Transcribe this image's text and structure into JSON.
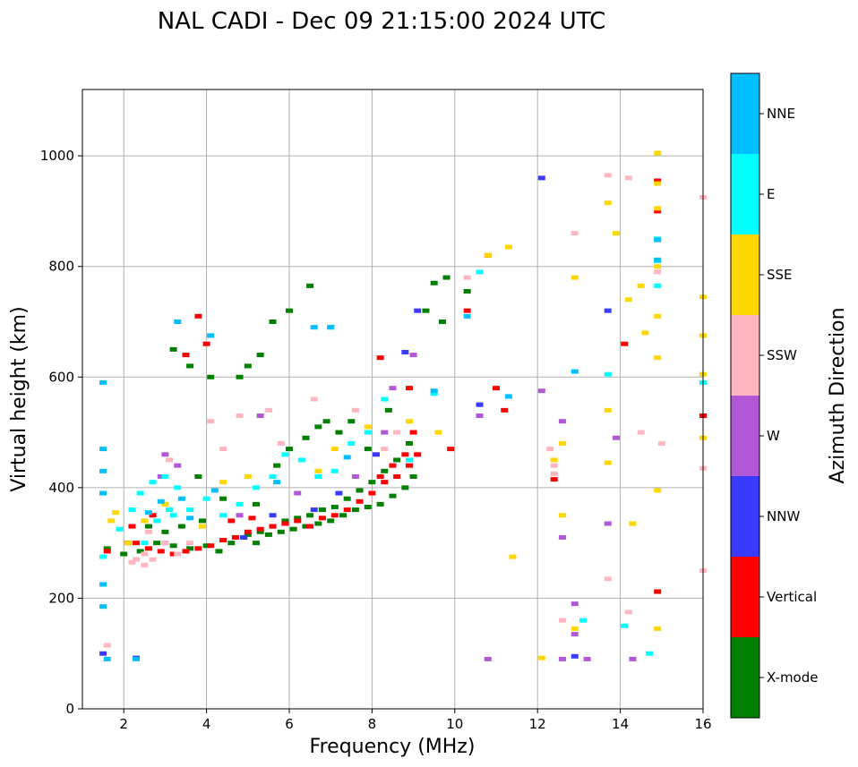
{
  "chart_data": {
    "type": "scatter",
    "title": "NAL CADI - Dec 09 21:15:00 2024 UTC",
    "xlabel": "Frequency (MHz)",
    "ylabel": "Virtual height (km)",
    "xlim": [
      1,
      16
    ],
    "ylim": [
      0,
      1120
    ],
    "xticks": [
      2,
      4,
      6,
      8,
      10,
      12,
      14,
      16
    ],
    "yticks": [
      0,
      200,
      400,
      600,
      800,
      1000
    ],
    "grid": true,
    "colorbar": {
      "label": "Azimuth Direction",
      "categories": [
        {
          "name": "X-mode",
          "color": "#008000"
        },
        {
          "name": "Vertical",
          "color": "#ff0000"
        },
        {
          "name": "NNW",
          "color": "#3a3aff"
        },
        {
          "name": "W",
          "color": "#b257d6"
        },
        {
          "name": "SSW",
          "color": "#ffb6c1"
        },
        {
          "name": "SSE",
          "color": "#ffd700"
        },
        {
          "name": "E",
          "color": "#00ffff"
        },
        {
          "name": "NNE",
          "color": "#00bfff"
        }
      ]
    },
    "series": [
      {
        "name": "X-mode",
        "points": [
          [
            1.6,
            290
          ],
          [
            2.0,
            280
          ],
          [
            2.4,
            285
          ],
          [
            2.8,
            300
          ],
          [
            3.2,
            295
          ],
          [
            3.6,
            290
          ],
          [
            4.0,
            295
          ],
          [
            4.3,
            285
          ],
          [
            4.6,
            300
          ],
          [
            4.9,
            310
          ],
          [
            5.2,
            300
          ],
          [
            5.5,
            315
          ],
          [
            5.8,
            320
          ],
          [
            6.1,
            325
          ],
          [
            6.4,
            330
          ],
          [
            6.7,
            335
          ],
          [
            7.0,
            340
          ],
          [
            7.3,
            350
          ],
          [
            7.6,
            360
          ],
          [
            7.9,
            365
          ],
          [
            8.2,
            370
          ],
          [
            8.5,
            385
          ],
          [
            8.8,
            400
          ],
          [
            9.0,
            420
          ],
          [
            8.9,
            480
          ],
          [
            8.6,
            450
          ],
          [
            8.3,
            430
          ],
          [
            8.0,
            410
          ],
          [
            7.7,
            395
          ],
          [
            7.4,
            380
          ],
          [
            7.1,
            365
          ],
          [
            6.8,
            360
          ],
          [
            6.5,
            350
          ],
          [
            6.2,
            345
          ],
          [
            5.9,
            340
          ],
          [
            5.6,
            330
          ],
          [
            5.3,
            320
          ],
          [
            5.0,
            315
          ],
          [
            6.7,
            510
          ],
          [
            6.4,
            490
          ],
          [
            6.9,
            520
          ],
          [
            7.2,
            500
          ],
          [
            7.5,
            520
          ],
          [
            7.9,
            470
          ],
          [
            8.4,
            540
          ],
          [
            6.5,
            765
          ],
          [
            5.3,
            640
          ],
          [
            5.0,
            620
          ],
          [
            4.8,
            600
          ],
          [
            5.6,
            700
          ],
          [
            6.0,
            720
          ],
          [
            3.6,
            620
          ],
          [
            3.2,
            650
          ],
          [
            4.1,
            600
          ],
          [
            9.5,
            770
          ],
          [
            9.8,
            780
          ],
          [
            10.3,
            755
          ],
          [
            9.7,
            700
          ],
          [
            9.3,
            720
          ],
          [
            3.8,
            420
          ],
          [
            4.4,
            380
          ],
          [
            5.2,
            370
          ],
          [
            2.6,
            330
          ],
          [
            3.0,
            320
          ],
          [
            3.4,
            330
          ],
          [
            3.9,
            340
          ],
          [
            6.0,
            470
          ],
          [
            5.7,
            440
          ]
        ]
      },
      {
        "name": "Vertical",
        "points": [
          [
            1.6,
            285
          ],
          [
            2.1,
            300
          ],
          [
            2.3,
            300
          ],
          [
            2.6,
            290
          ],
          [
            2.9,
            285
          ],
          [
            3.2,
            280
          ],
          [
            3.5,
            285
          ],
          [
            3.8,
            290
          ],
          [
            4.1,
            295
          ],
          [
            4.4,
            305
          ],
          [
            4.7,
            310
          ],
          [
            5.0,
            320
          ],
          [
            5.3,
            325
          ],
          [
            5.6,
            330
          ],
          [
            5.9,
            335
          ],
          [
            6.2,
            340
          ],
          [
            6.5,
            330
          ],
          [
            6.8,
            345
          ],
          [
            7.1,
            350
          ],
          [
            7.4,
            360
          ],
          [
            7.7,
            375
          ],
          [
            8.0,
            390
          ],
          [
            8.3,
            410
          ],
          [
            8.6,
            420
          ],
          [
            8.9,
            440
          ],
          [
            9.1,
            460
          ],
          [
            8.8,
            460
          ],
          [
            8.5,
            440
          ],
          [
            8.2,
            420
          ],
          [
            9.0,
            500
          ],
          [
            9.9,
            470
          ],
          [
            10.3,
            720
          ],
          [
            10.8,
            820
          ],
          [
            11.2,
            540
          ],
          [
            11.0,
            580
          ],
          [
            3.5,
            640
          ],
          [
            3.8,
            710
          ],
          [
            4.0,
            660
          ],
          [
            8.2,
            635
          ],
          [
            8.9,
            580
          ],
          [
            12.4,
            415
          ],
          [
            14.1,
            660
          ],
          [
            14.9,
            900
          ],
          [
            14.9,
            955
          ],
          [
            14.9,
            212
          ],
          [
            16.0,
            530
          ],
          [
            4.6,
            340
          ],
          [
            5.1,
            345
          ],
          [
            2.2,
            330
          ],
          [
            2.7,
            350
          ]
        ]
      },
      {
        "name": "NNW",
        "points": [
          [
            1.5,
            100
          ],
          [
            2.3,
            92
          ],
          [
            10.6,
            550
          ],
          [
            9.1,
            720
          ],
          [
            12.1,
            960
          ],
          [
            13.7,
            720
          ],
          [
            12.9,
            95
          ],
          [
            8.8,
            645
          ],
          [
            5.6,
            350
          ],
          [
            7.2,
            390
          ],
          [
            8.1,
            460
          ],
          [
            6.6,
            360
          ],
          [
            3.0,
            300
          ],
          [
            4.9,
            310
          ]
        ]
      },
      {
        "name": "W",
        "points": [
          [
            3.0,
            460
          ],
          [
            3.3,
            440
          ],
          [
            2.9,
            420
          ],
          [
            5.3,
            530
          ],
          [
            8.5,
            580
          ],
          [
            9.0,
            640
          ],
          [
            10.6,
            530
          ],
          [
            12.1,
            575
          ],
          [
            12.6,
            520
          ],
          [
            12.6,
            310
          ],
          [
            12.9,
            190
          ],
          [
            12.9,
            135
          ],
          [
            12.6,
            90
          ],
          [
            13.2,
            90
          ],
          [
            13.7,
            335
          ],
          [
            14.3,
            90
          ],
          [
            13.9,
            490
          ],
          [
            10.8,
            90
          ],
          [
            4.8,
            350
          ],
          [
            6.2,
            390
          ],
          [
            7.6,
            420
          ],
          [
            8.3,
            500
          ]
        ]
      },
      {
        "name": "SSW",
        "points": [
          [
            1.6,
            115
          ],
          [
            2.3,
            270
          ],
          [
            2.5,
            260
          ],
          [
            2.7,
            270
          ],
          [
            2.5,
            280
          ],
          [
            2.2,
            265
          ],
          [
            3.0,
            300
          ],
          [
            3.3,
            280
          ],
          [
            3.6,
            300
          ],
          [
            4.1,
            520
          ],
          [
            4.8,
            530
          ],
          [
            5.5,
            540
          ],
          [
            6.6,
            560
          ],
          [
            7.6,
            540
          ],
          [
            8.3,
            470
          ],
          [
            8.6,
            500
          ],
          [
            10.3,
            780
          ],
          [
            12.3,
            470
          ],
          [
            12.4,
            440
          ],
          [
            12.4,
            425
          ],
          [
            12.6,
            160
          ],
          [
            12.9,
            860
          ],
          [
            13.7,
            965
          ],
          [
            14.2,
            960
          ],
          [
            14.9,
            790
          ],
          [
            15.0,
            480
          ],
          [
            16.0,
            925
          ],
          [
            16.0,
            435
          ],
          [
            16.0,
            250
          ],
          [
            13.7,
            235
          ],
          [
            14.2,
            175
          ],
          [
            14.5,
            500
          ],
          [
            3.1,
            450
          ],
          [
            2.6,
            320
          ],
          [
            4.4,
            470
          ],
          [
            5.8,
            480
          ]
        ]
      },
      {
        "name": "SSE",
        "points": [
          [
            1.7,
            340
          ],
          [
            1.8,
            355
          ],
          [
            2.1,
            300
          ],
          [
            2.5,
            340
          ],
          [
            3.0,
            370
          ],
          [
            3.9,
            330
          ],
          [
            4.4,
            410
          ],
          [
            5.0,
            420
          ],
          [
            6.7,
            430
          ],
          [
            7.1,
            470
          ],
          [
            7.9,
            510
          ],
          [
            8.9,
            520
          ],
          [
            9.6,
            500
          ],
          [
            10.8,
            820
          ],
          [
            11.3,
            835
          ],
          [
            12.4,
            450
          ],
          [
            12.6,
            350
          ],
          [
            12.6,
            480
          ],
          [
            12.9,
            780
          ],
          [
            12.9,
            145
          ],
          [
            13.7,
            915
          ],
          [
            13.7,
            540
          ],
          [
            13.7,
            445
          ],
          [
            13.9,
            860
          ],
          [
            14.2,
            740
          ],
          [
            14.3,
            335
          ],
          [
            14.6,
            680
          ],
          [
            14.9,
            1005
          ],
          [
            14.9,
            950
          ],
          [
            14.9,
            905
          ],
          [
            14.9,
            800
          ],
          [
            14.9,
            710
          ],
          [
            14.9,
            635
          ],
          [
            14.9,
            395
          ],
          [
            14.9,
            145
          ],
          [
            16.0,
            745
          ],
          [
            16.0,
            675
          ],
          [
            16.0,
            605
          ],
          [
            16.0,
            490
          ],
          [
            12.1,
            92
          ],
          [
            14.5,
            765
          ],
          [
            11.4,
            275
          ]
        ]
      },
      {
        "name": "E",
        "points": [
          [
            1.5,
            275
          ],
          [
            1.9,
            325
          ],
          [
            2.2,
            360
          ],
          [
            2.4,
            390
          ],
          [
            2.7,
            410
          ],
          [
            3.0,
            420
          ],
          [
            3.3,
            400
          ],
          [
            2.8,
            340
          ],
          [
            3.2,
            350
          ],
          [
            3.6,
            360
          ],
          [
            4.0,
            380
          ],
          [
            4.4,
            350
          ],
          [
            4.8,
            370
          ],
          [
            5.2,
            400
          ],
          [
            5.6,
            420
          ],
          [
            5.9,
            460
          ],
          [
            6.3,
            450
          ],
          [
            6.7,
            420
          ],
          [
            7.1,
            430
          ],
          [
            7.5,
            480
          ],
          [
            7.9,
            500
          ],
          [
            8.3,
            560
          ],
          [
            8.9,
            450
          ],
          [
            13.1,
            160
          ],
          [
            13.7,
            605
          ],
          [
            14.1,
            150
          ],
          [
            14.9,
            850
          ],
          [
            14.9,
            810
          ],
          [
            14.9,
            765
          ],
          [
            16.0,
            590
          ],
          [
            14.7,
            100
          ],
          [
            10.6,
            790
          ],
          [
            9.5,
            570
          ],
          [
            7.0,
            690
          ],
          [
            3.1,
            360
          ],
          [
            2.5,
            300
          ]
        ]
      },
      {
        "name": "NNE",
        "points": [
          [
            1.5,
            590
          ],
          [
            1.5,
            470
          ],
          [
            1.5,
            430
          ],
          [
            1.5,
            390
          ],
          [
            1.5,
            185
          ],
          [
            1.5,
            225
          ],
          [
            1.6,
            90
          ],
          [
            2.3,
            90
          ],
          [
            3.3,
            700
          ],
          [
            4.1,
            675
          ],
          [
            6.6,
            690
          ],
          [
            7.0,
            690
          ],
          [
            9.5,
            575
          ],
          [
            10.3,
            710
          ],
          [
            11.3,
            565
          ],
          [
            12.9,
            610
          ],
          [
            14.9,
            848
          ],
          [
            14.9,
            812
          ],
          [
            3.6,
            345
          ],
          [
            4.2,
            395
          ],
          [
            5.7,
            410
          ],
          [
            7.4,
            455
          ],
          [
            2.9,
            375
          ],
          [
            3.4,
            380
          ],
          [
            2.6,
            355
          ]
        ]
      }
    ]
  }
}
